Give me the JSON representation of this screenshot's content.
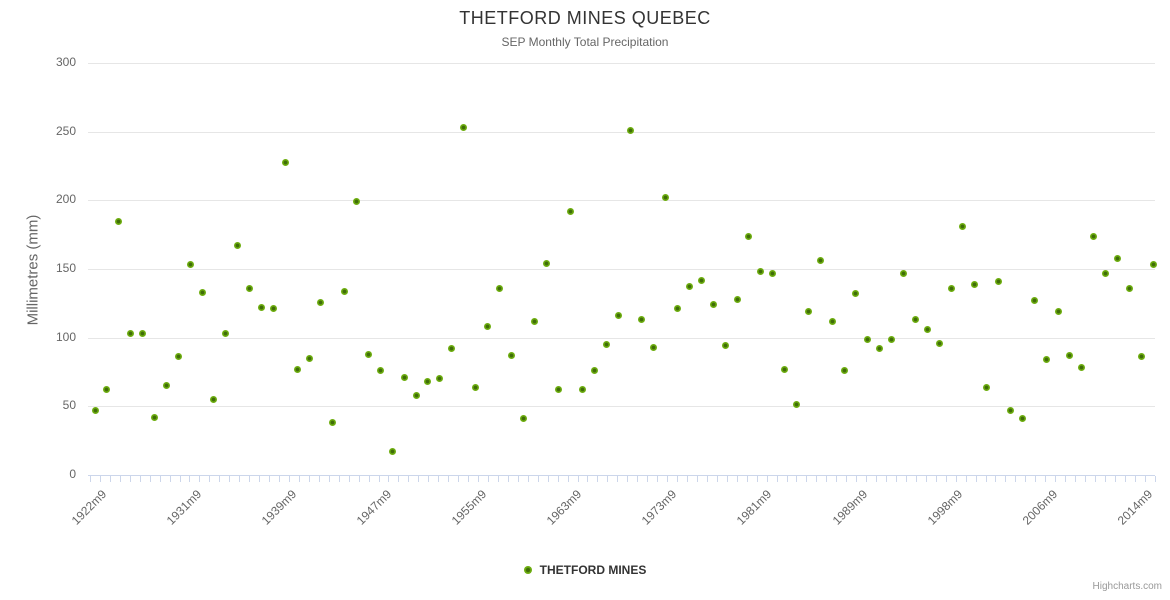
{
  "header": {
    "title": "THETFORD MINES QUEBEC",
    "subtitle": "SEP Monthly Total Precipitation"
  },
  "y_axis": {
    "title": "Millimetres (mm)"
  },
  "legend": {
    "label": "THETFORD MINES"
  },
  "credits": {
    "label": "Highcharts.com"
  },
  "colors": {
    "marker_fill": "#6eae10",
    "marker_center": "#3f6d08",
    "gridline": "#e6e6e6",
    "axis_line": "#ccd6eb",
    "title_text": "#333333",
    "label_text": "#666666",
    "credits_text": "#999999"
  },
  "chart_data": {
    "type": "scatter",
    "title": "THETFORD MINES QUEBEC",
    "subtitle": "SEP Monthly Total Precipitation",
    "xlabel": "",
    "ylabel": "Millimetres (mm)",
    "ylim": [
      0,
      300
    ],
    "y_ticks": [
      0,
      50,
      100,
      150,
      200,
      250,
      300
    ],
    "grid": true,
    "legend_position": "bottom-center",
    "x_tick_labels": [
      "1922m9",
      "1931m9",
      "1939m9",
      "1947m9",
      "1955m9",
      "1963m9",
      "1973m9",
      "1981m9",
      "1989m9",
      "1998m9",
      "2006m9",
      "2014m9"
    ],
    "x_tick_label_point_indices": [
      0,
      8,
      16,
      24,
      32,
      40,
      48,
      56,
      64,
      72,
      80,
      88
    ],
    "series": [
      {
        "name": "THETFORD MINES",
        "values": [
          47,
          62,
          185,
          103,
          103,
          42,
          65,
          86,
          153,
          133,
          55,
          103,
          167,
          136,
          122,
          121,
          228,
          77,
          85,
          126,
          38,
          134,
          199,
          88,
          76,
          17,
          71,
          58,
          68,
          70,
          92,
          253,
          64,
          108,
          136,
          87,
          41,
          112,
          154,
          62,
          192,
          62,
          76,
          95,
          116,
          251,
          113,
          93,
          202,
          121,
          137,
          142,
          124,
          94,
          128,
          174,
          148,
          147,
          77,
          51,
          119,
          156,
          112,
          76,
          132,
          99,
          92,
          99,
          147,
          113,
          106,
          96,
          136,
          181,
          139,
          64,
          141,
          47,
          41,
          127,
          84,
          119,
          87,
          78,
          174,
          147,
          158,
          136,
          86,
          153
        ]
      }
    ]
  }
}
